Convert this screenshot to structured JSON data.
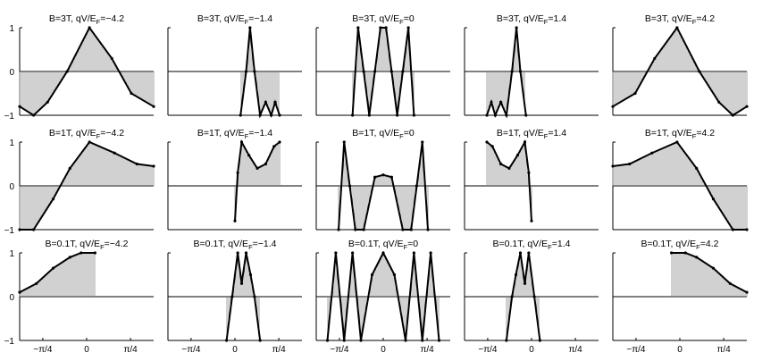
{
  "figure": {
    "x_tick_labels": [
      "−π/4",
      "0",
      "π/4"
    ],
    "y_tick_labels": [
      "1",
      "0",
      "−1"
    ]
  },
  "chart_data": [
    {
      "type": "line",
      "title": "B=3T, qV/E_F=−4.2",
      "title_main": "B=3T, qV/E",
      "title_sub": "F",
      "title_tail": "=−4.2",
      "row": "B=3T",
      "col": "qV/E_F=−4.2",
      "xlim": [
        -1.2,
        1.2
      ],
      "ylim": [
        -1,
        1
      ],
      "x": [
        -1.2,
        -0.95,
        -0.7,
        -0.35,
        0.05,
        0.45,
        0.8,
        1.2
      ],
      "y": [
        -0.8,
        -1,
        -0.7,
        0.0,
        1.0,
        0.3,
        -0.5,
        -0.8
      ],
      "show_ticks_x": false
    },
    {
      "type": "line",
      "title": "B=3T, qV/E_F=−1.4",
      "title_main": "B=3T, qV/E",
      "title_sub": "F",
      "title_tail": "=−1.4",
      "row": "B=3T",
      "col": "qV/E_F=−1.4",
      "xlim": [
        -1.2,
        1.2
      ],
      "ylim": [
        -1,
        1
      ],
      "x": [
        0.1,
        0.2,
        0.27,
        0.35,
        0.45,
        0.55,
        0.65,
        0.72,
        0.8
      ],
      "y": [
        -1,
        0.0,
        1.0,
        0.0,
        -1.0,
        -0.7,
        -1.0,
        -0.7,
        -1.0
      ],
      "show_ticks_x": false
    },
    {
      "type": "line",
      "title": "B=3T, qV/E_F=0",
      "title_main": "B=3T, qV/E",
      "title_sub": "F",
      "title_tail": "=0",
      "row": "B=3T",
      "col": "qV/E_F=0",
      "xlim": [
        -1.2,
        1.2
      ],
      "ylim": [
        -1,
        1
      ],
      "x": [
        -0.55,
        -0.45,
        -0.35,
        -0.25,
        -0.15,
        -0.05,
        0.05,
        0.15,
        0.25,
        0.35,
        0.45,
        0.55
      ],
      "y": [
        -1,
        1,
        0,
        -1,
        0,
        1,
        1,
        0,
        -1,
        0,
        1,
        -1
      ],
      "show_ticks_x": false
    },
    {
      "type": "line",
      "title": "B=3T, qV/E_F=1.4",
      "title_main": "B=3T, qV/E",
      "title_sub": "F",
      "title_tail": "=1.4",
      "row": "B=3T",
      "col": "qV/E_F=1.4",
      "xlim": [
        -1.2,
        1.2
      ],
      "ylim": [
        -1,
        1
      ],
      "x": [
        -0.8,
        -0.72,
        -0.65,
        -0.55,
        -0.45,
        -0.35,
        -0.27,
        -0.2,
        -0.1
      ],
      "y": [
        -1.0,
        -0.7,
        -1.0,
        -0.7,
        -1.0,
        0.0,
        1.0,
        0.0,
        -1.0
      ],
      "show_ticks_x": false
    },
    {
      "type": "line",
      "title": "B=3T, qV/E_F=4.2",
      "title_main": "B=3T, qV/E",
      "title_sub": "F",
      "title_tail": "=4.2",
      "row": "B=3T",
      "col": "qV/E_F=4.2",
      "xlim": [
        -1.2,
        1.2
      ],
      "ylim": [
        -1,
        1
      ],
      "x": [
        -1.2,
        -0.8,
        -0.45,
        -0.05,
        0.35,
        0.7,
        0.95,
        1.2
      ],
      "y": [
        -0.8,
        -0.5,
        0.3,
        1.0,
        0.0,
        -0.7,
        -1.0,
        -0.8
      ],
      "show_ticks_x": false
    },
    {
      "type": "line",
      "title": "B=1T, qV/E_F=−4.2",
      "title_main": "B=1T, qV/E",
      "title_sub": "F",
      "title_tail": "=−4.2",
      "row": "B=1T",
      "col": "qV/E_F=−4.2",
      "xlim": [
        -1.2,
        1.2
      ],
      "ylim": [
        -1,
        1
      ],
      "x": [
        -1.2,
        -0.95,
        -0.6,
        -0.3,
        0.05,
        0.5,
        0.9,
        1.2
      ],
      "y": [
        -1,
        -1,
        -0.3,
        0.4,
        1.0,
        0.75,
        0.5,
        0.45
      ],
      "show_ticks_x": false
    },
    {
      "type": "line",
      "title": "B=1T, qV/E_F=−1.4",
      "title_main": "B=1T, qV/E",
      "title_sub": "F",
      "title_tail": "=−1.4",
      "row": "B=1T",
      "col": "qV/E_F=−1.4",
      "xlim": [
        -1.2,
        1.2
      ],
      "ylim": [
        -1,
        1
      ],
      "x": [
        0.0,
        0.05,
        0.12,
        0.25,
        0.4,
        0.55,
        0.7,
        0.8
      ],
      "y": [
        -0.8,
        0.3,
        1.0,
        0.7,
        0.4,
        0.5,
        0.9,
        1.0
      ],
      "show_ticks_x": false
    },
    {
      "type": "line",
      "title": "B=1T, qV/E_F=0",
      "title_main": "B=1T, qV/E",
      "title_sub": "F",
      "title_tail": "=0",
      "row": "B=1T",
      "col": "qV/E_F=0",
      "xlim": [
        -1.2,
        1.2
      ],
      "ylim": [
        -1,
        1
      ],
      "x": [
        -0.8,
        -0.7,
        -0.6,
        -0.5,
        -0.35,
        -0.15,
        0.0,
        0.15,
        0.35,
        0.5,
        0.6,
        0.7,
        0.8
      ],
      "y": [
        -1,
        1,
        0,
        -1,
        -1,
        0.2,
        0.25,
        0.2,
        -1,
        -1,
        0,
        1,
        -1
      ],
      "show_ticks_x": false
    },
    {
      "type": "line",
      "title": "B=1T, qV/E_F=1.4",
      "title_main": "B=1T, qV/E",
      "title_sub": "F",
      "title_tail": "=1.4",
      "row": "B=1T",
      "col": "qV/E_F=1.4",
      "xlim": [
        -1.2,
        1.2
      ],
      "ylim": [
        -1,
        1
      ],
      "x": [
        -0.8,
        -0.7,
        -0.55,
        -0.4,
        -0.25,
        -0.12,
        -0.05,
        0.0
      ],
      "y": [
        1.0,
        0.9,
        0.5,
        0.4,
        0.7,
        1.0,
        0.3,
        -0.8
      ],
      "show_ticks_x": false
    },
    {
      "type": "line",
      "title": "B=1T, qV/E_F=4.2",
      "title_main": "B=1T, qV/E",
      "title_sub": "F",
      "title_tail": "=4.2",
      "row": "B=1T",
      "col": "qV/E_F=4.2",
      "xlim": [
        -1.2,
        1.2
      ],
      "ylim": [
        -1,
        1
      ],
      "x": [
        -1.2,
        -0.9,
        -0.5,
        -0.05,
        0.3,
        0.6,
        0.95,
        1.2
      ],
      "y": [
        0.45,
        0.5,
        0.75,
        1.0,
        0.4,
        -0.3,
        -1,
        -1
      ],
      "show_ticks_x": false
    },
    {
      "type": "line",
      "title": "B=0.1T, qV/E_F=−4.2",
      "title_main": "B=0.1T, qV/E",
      "title_sub": "F",
      "title_tail": "=−4.2",
      "row": "B=0.1T",
      "col": "qV/E_F=−4.2",
      "xlim": [
        -1.2,
        1.2
      ],
      "ylim": [
        -1,
        1
      ],
      "x": [
        -1.2,
        -0.9,
        -0.6,
        -0.3,
        -0.1,
        0.15
      ],
      "y": [
        0.1,
        0.3,
        0.65,
        0.9,
        1.0,
        1.0
      ],
      "show_ticks_x": true
    },
    {
      "type": "line",
      "title": "B=0.1T, qV/E_F=−1.4",
      "title_main": "B=0.1T, qV/E",
      "title_sub": "F",
      "title_tail": "=−1.4",
      "row": "B=0.1T",
      "col": "qV/E_F=−1.4",
      "xlim": [
        -1.2,
        1.2
      ],
      "ylim": [
        -1,
        1
      ],
      "x": [
        -0.15,
        -0.05,
        0.05,
        0.12,
        0.2,
        0.28,
        0.35,
        0.45
      ],
      "y": [
        -1.0,
        0.0,
        1.0,
        0.3,
        1.0,
        0.5,
        0.0,
        -1.0
      ],
      "show_ticks_x": true
    },
    {
      "type": "line",
      "title": "B=0.1T, qV/E_F=0",
      "title_main": "B=0.1T, qV/E",
      "title_sub": "F",
      "title_tail": "=0",
      "row": "B=0.1T",
      "col": "qV/E_F=0",
      "xlim": [
        -1.2,
        1.2
      ],
      "ylim": [
        -1,
        1
      ],
      "x": [
        -1.0,
        -0.85,
        -0.7,
        -0.55,
        -0.4,
        -0.2,
        0.0,
        0.2,
        0.4,
        0.55,
        0.7,
        0.85,
        1.0
      ],
      "y": [
        -1,
        1,
        -1,
        1,
        -1,
        0.5,
        1.0,
        0.5,
        -1,
        1,
        -1,
        1,
        -1
      ],
      "show_ticks_x": true
    },
    {
      "type": "line",
      "title": "B=0.1T, qV/E_F=1.4",
      "title_main": "B=0.1T, qV/E",
      "title_sub": "F",
      "title_tail": "=1.4",
      "row": "B=0.1T",
      "col": "qV/E_F=1.4",
      "xlim": [
        -1.2,
        1.2
      ],
      "ylim": [
        -1,
        1
      ],
      "x": [
        -0.45,
        -0.35,
        -0.28,
        -0.2,
        -0.12,
        -0.05,
        0.05,
        0.15
      ],
      "y": [
        -1.0,
        0.0,
        0.5,
        1.0,
        0.3,
        1.0,
        0.0,
        -1.0
      ],
      "show_ticks_x": true
    },
    {
      "type": "line",
      "title": "B=0.1T, qV/E_F=4.2",
      "title_main": "B=0.1T, qV/E",
      "title_sub": "F",
      "title_tail": "=4.2",
      "row": "B=0.1T",
      "col": "qV/E_F=4.2",
      "xlim": [
        -1.2,
        1.2
      ],
      "ylim": [
        -1,
        1
      ],
      "x": [
        -0.15,
        0.1,
        0.3,
        0.6,
        0.9,
        1.2
      ],
      "y": [
        1.0,
        1.0,
        0.9,
        0.65,
        0.3,
        0.1
      ],
      "show_ticks_x": true
    }
  ]
}
